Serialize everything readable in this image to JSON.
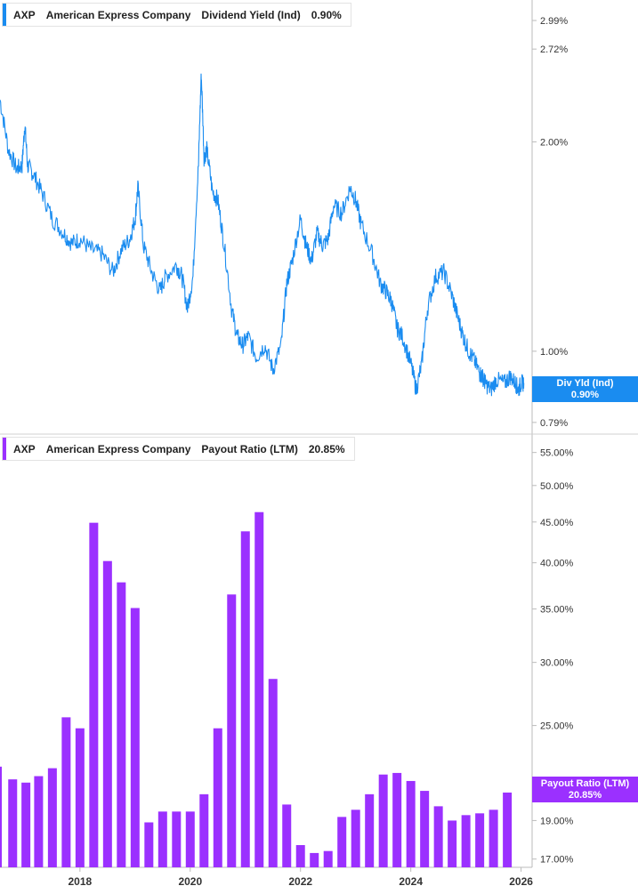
{
  "colors": {
    "yield_line": "#1a8cf0",
    "payout_bar": "#9b30ff",
    "axis": "#bbbbbb",
    "tick_text": "#333333"
  },
  "top_legend": {
    "ticker": "AXP",
    "company": "American Express Company",
    "metric": "Dividend Yield (Ind)",
    "value": "0.90%"
  },
  "bottom_legend": {
    "ticker": "AXP",
    "company": "American Express Company",
    "metric": "Payout Ratio (LTM)",
    "value": "20.85%"
  },
  "top_tag": {
    "label": "Div Yld (Ind)",
    "value": "0.90%"
  },
  "bottom_tag": {
    "label": "Payout Ratio (LTM)",
    "value": "20.85%"
  },
  "chart_data": [
    {
      "type": "line",
      "scale": "log",
      "series": [
        {
          "name": "Dividend Yield (Ind)"
        }
      ],
      "y_ticks": [
        "2.99%",
        "2.72%",
        "2.00%",
        "1.00%",
        "0.79%"
      ],
      "y_tick_values": [
        2.99,
        2.72,
        2.0,
        1.0,
        0.79
      ],
      "ylim": [
        0.76,
        3.2
      ],
      "xlim": [
        2016.55,
        2026.2
      ],
      "x": [
        2016.55,
        2016.7,
        2016.85,
        2016.95,
        2017.0,
        2017.05,
        2017.15,
        2017.3,
        2017.5,
        2017.7,
        2017.85,
        2018.0,
        2018.2,
        2018.4,
        2018.6,
        2018.75,
        2018.9,
        2019.0,
        2019.05,
        2019.15,
        2019.3,
        2019.45,
        2019.55,
        2019.75,
        2019.85,
        2019.95,
        2020.05,
        2020.15,
        2020.2,
        2020.25,
        2020.3,
        2020.4,
        2020.5,
        2020.6,
        2020.75,
        2020.85,
        2020.95,
        2021.05,
        2021.2,
        2021.35,
        2021.5,
        2021.65,
        2021.75,
        2021.85,
        2022.0,
        2022.1,
        2022.2,
        2022.3,
        2022.4,
        2022.5,
        2022.6,
        2022.75,
        2022.9,
        2023.0,
        2023.1,
        2023.3,
        2023.45,
        2023.55,
        2023.65,
        2023.75,
        2023.85,
        2024.0,
        2024.1,
        2024.2,
        2024.3,
        2024.45,
        2024.6,
        2024.75,
        2024.85,
        2024.95,
        2025.05,
        2025.15,
        2025.25,
        2025.3,
        2025.35,
        2025.45,
        2025.55,
        2025.7,
        2025.8,
        2025.9,
        2025.95,
        2026.0,
        2026.05
      ],
      "values": [
        2.3,
        1.95,
        1.83,
        1.85,
        2.12,
        1.85,
        1.8,
        1.7,
        1.55,
        1.48,
        1.43,
        1.45,
        1.4,
        1.38,
        1.3,
        1.4,
        1.45,
        1.55,
        1.72,
        1.42,
        1.3,
        1.22,
        1.28,
        1.33,
        1.28,
        1.15,
        1.28,
        1.85,
        2.5,
        1.9,
        1.95,
        1.7,
        1.65,
        1.45,
        1.15,
        1.05,
        1.02,
        1.05,
        0.98,
        1.02,
        0.94,
        1.02,
        1.25,
        1.35,
        1.55,
        1.42,
        1.35,
        1.48,
        1.42,
        1.45,
        1.62,
        1.58,
        1.72,
        1.65,
        1.52,
        1.38,
        1.25,
        1.22,
        1.18,
        1.08,
        1.05,
        0.96,
        0.88,
        0.96,
        1.15,
        1.28,
        1.3,
        1.2,
        1.12,
        1.05,
        1.0,
        0.97,
        0.93,
        0.92,
        0.9,
        0.88,
        0.91,
        0.9,
        0.92,
        0.9,
        0.88,
        0.9,
        0.9
      ]
    },
    {
      "type": "bar",
      "scale": "log",
      "series": [
        {
          "name": "Payout Ratio (LTM)"
        }
      ],
      "y_ticks": [
        "55.00%",
        "50.00%",
        "45.00%",
        "40.00%",
        "35.00%",
        "30.00%",
        "25.00%",
        "19.00%",
        "17.00%"
      ],
      "y_tick_values": [
        55,
        50,
        45,
        40,
        35,
        30,
        25,
        19,
        17
      ],
      "ylim": [
        16.6,
        58
      ],
      "xlim": [
        2016.55,
        2026.2
      ],
      "x_ticks": [
        "2018",
        "2020",
        "2022",
        "2024",
        "2026"
      ],
      "x_tick_values": [
        2018,
        2020,
        2022,
        2024,
        2026
      ],
      "x": [
        2016.78,
        2017.02,
        2017.25,
        2017.5,
        2017.75,
        2018.0,
        2018.25,
        2018.5,
        2018.75,
        2019.0,
        2019.25,
        2019.5,
        2019.75,
        2020.0,
        2020.25,
        2020.5,
        2020.75,
        2021.0,
        2021.25,
        2021.5,
        2021.75,
        2022.0,
        2022.25,
        2022.5,
        2022.75,
        2023.0,
        2023.25,
        2023.5,
        2023.75,
        2024.0,
        2024.25,
        2024.5,
        2024.75,
        2025.0,
        2025.25,
        2025.5,
        2025.75
      ],
      "values": [
        21.4,
        21.2,
        21.6,
        22.1,
        25.6,
        24.8,
        44.9,
        40.2,
        37.8,
        35.1,
        18.9,
        19.5,
        19.5,
        19.5,
        20.5,
        24.8,
        36.5,
        43.8,
        46.3,
        28.6,
        19.9,
        17.7,
        17.3,
        17.4,
        19.2,
        19.6,
        20.5,
        21.7,
        21.8,
        21.3,
        20.7,
        19.8,
        19.0,
        19.3,
        19.4,
        19.6,
        20.6
      ]
    }
  ]
}
